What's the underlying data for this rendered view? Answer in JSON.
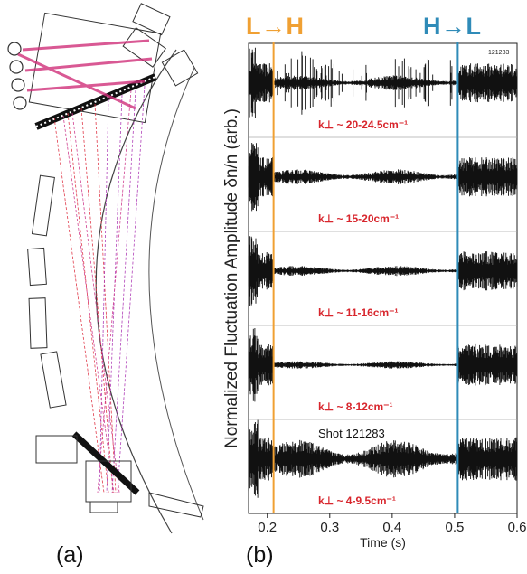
{
  "panel_a": {
    "label": "(a)"
  },
  "panel_b": {
    "label": "(b)"
  },
  "colors": {
    "lh": "#f0a033",
    "hl": "#2f8bb8",
    "band_text": "#d8262d",
    "beam_red": "#e03a4a",
    "beam_violet": "#b040b8",
    "beam_magenta": "#d0307a"
  },
  "chart_data": {
    "type": "line",
    "title": "",
    "xlabel": "Time (s)",
    "ylabel": "Normalized Fluctuation Amplitude δn/n (arb.)",
    "xlim": [
      0.17,
      0.6
    ],
    "x_ticks": [
      "0.2",
      "0.3",
      "0.4",
      "0.5",
      "0.6"
    ],
    "x_tick_values": [
      0.2,
      0.3,
      0.4,
      0.5,
      0.6
    ],
    "transitions": [
      {
        "label": "L→H",
        "time": 0.21,
        "color": "#f0a033"
      },
      {
        "label": "H→L",
        "time": 0.505,
        "color": "#2f8bb8"
      }
    ],
    "series": [
      {
        "name": "k⊥ ~ 20-24.5cm⁻¹",
        "L_amp": 0.9,
        "H_amp": 0.12,
        "burst": true
      },
      {
        "name": "k⊥ ~ 15-20cm⁻¹",
        "L_amp": 0.9,
        "H_amp": 0.12,
        "burst": false
      },
      {
        "name": "k⊥ ~ 11-16cm⁻¹",
        "L_amp": 0.9,
        "H_amp": 0.08,
        "burst": false
      },
      {
        "name": "k⊥ ~ 8-12cm⁻¹",
        "L_amp": 0.95,
        "H_amp": 0.06,
        "burst": false
      },
      {
        "name": "k⊥ ~ 4-9.5cm⁻¹",
        "L_amp": 1.0,
        "H_amp": 0.3,
        "burst": false
      }
    ],
    "annotation": "Shot 121283",
    "corner_label": "121283",
    "grid": false,
    "legend": "none"
  }
}
